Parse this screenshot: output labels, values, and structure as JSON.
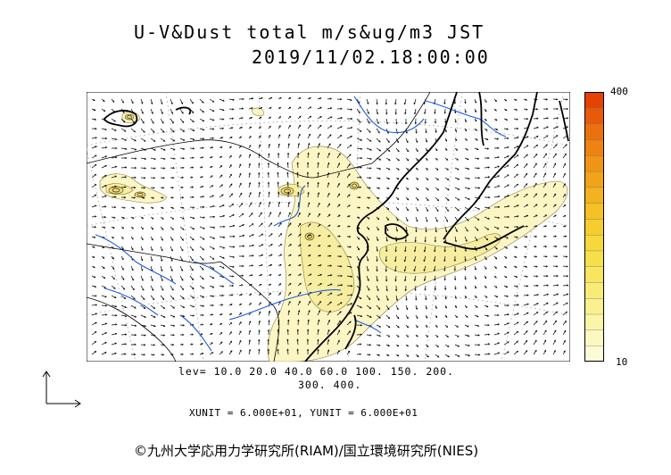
{
  "title": {
    "line1": "U-V&Dust total m/s&ug/m3 JST",
    "line2": "2019/11/02.18:00:00"
  },
  "colorbar": {
    "max_label": "400",
    "min_label": "10",
    "colors": [
      "#fbfbd7",
      "#fbf8c0",
      "#fbf5a8",
      "#faf08e",
      "#f9ec76",
      "#f8e560",
      "#f7df4c",
      "#f6d83a",
      "#f5cd2e",
      "#f4c126",
      "#f3b21f",
      "#f2a31a",
      "#f09416",
      "#ee8312",
      "#eb700e",
      "#e85a0a",
      "#e54205"
    ]
  },
  "levels": {
    "line1": "lev= 10.0 20.0 40.0 60.0 100. 150. 200.",
    "line2": "300. 400."
  },
  "units": "XUNIT = 6.000E+01, YUNIT = 6.000E+01",
  "credit": "©九州大学応用力学研究所(RIAM)/国立環境研究所(NIES)",
  "map_style": {
    "coast_color": "#000000",
    "river_color": "#1e5adc",
    "grid_color": "#888888",
    "dust_light": "#fbf6c4",
    "dust_mid": "#f6eda0",
    "contour_color": "#8a7a40"
  }
}
